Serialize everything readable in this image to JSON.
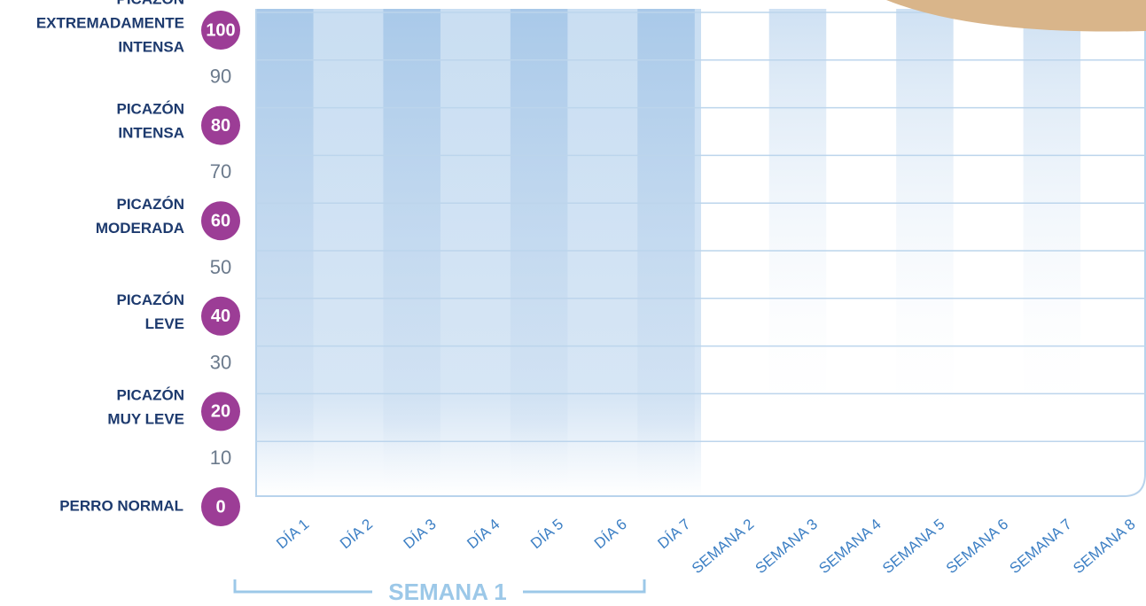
{
  "chart_data": {
    "type": "scale-grid",
    "categories": [
      "DÍA 1",
      "DÍA 2",
      "DÍA 3",
      "DÍA 4",
      "DÍA 5",
      "DÍA 6",
      "DÍA 7",
      "SEMANA 2",
      "SEMANA 3",
      "SEMANA 4",
      "SEMANA 5",
      "SEMANA 6",
      "SEMANA 7",
      "SEMANA 8"
    ],
    "group_label": "SEMANA 1",
    "ylim": [
      0,
      100
    ],
    "yticks": [
      0,
      10,
      20,
      30,
      40,
      50,
      60,
      70,
      80,
      90,
      100
    ],
    "scale_labels": [
      {
        "value": 100,
        "label": [
          "PICAZÓN",
          "EXTREMADAMENTE",
          "INTENSA"
        ]
      },
      {
        "value": 80,
        "label": [
          "PICAZÓN",
          "INTENSA"
        ]
      },
      {
        "value": 60,
        "label": [
          "PICAZÓN",
          "MODERADA"
        ]
      },
      {
        "value": 40,
        "label": [
          "PICAZÓN",
          "LEVE"
        ]
      },
      {
        "value": 20,
        "label": [
          "PICAZÓN",
          "MUY LEVE"
        ]
      },
      {
        "value": 0,
        "label": [
          "PERRO NORMAL"
        ]
      }
    ],
    "grid": true,
    "color": "#9c3d96"
  }
}
